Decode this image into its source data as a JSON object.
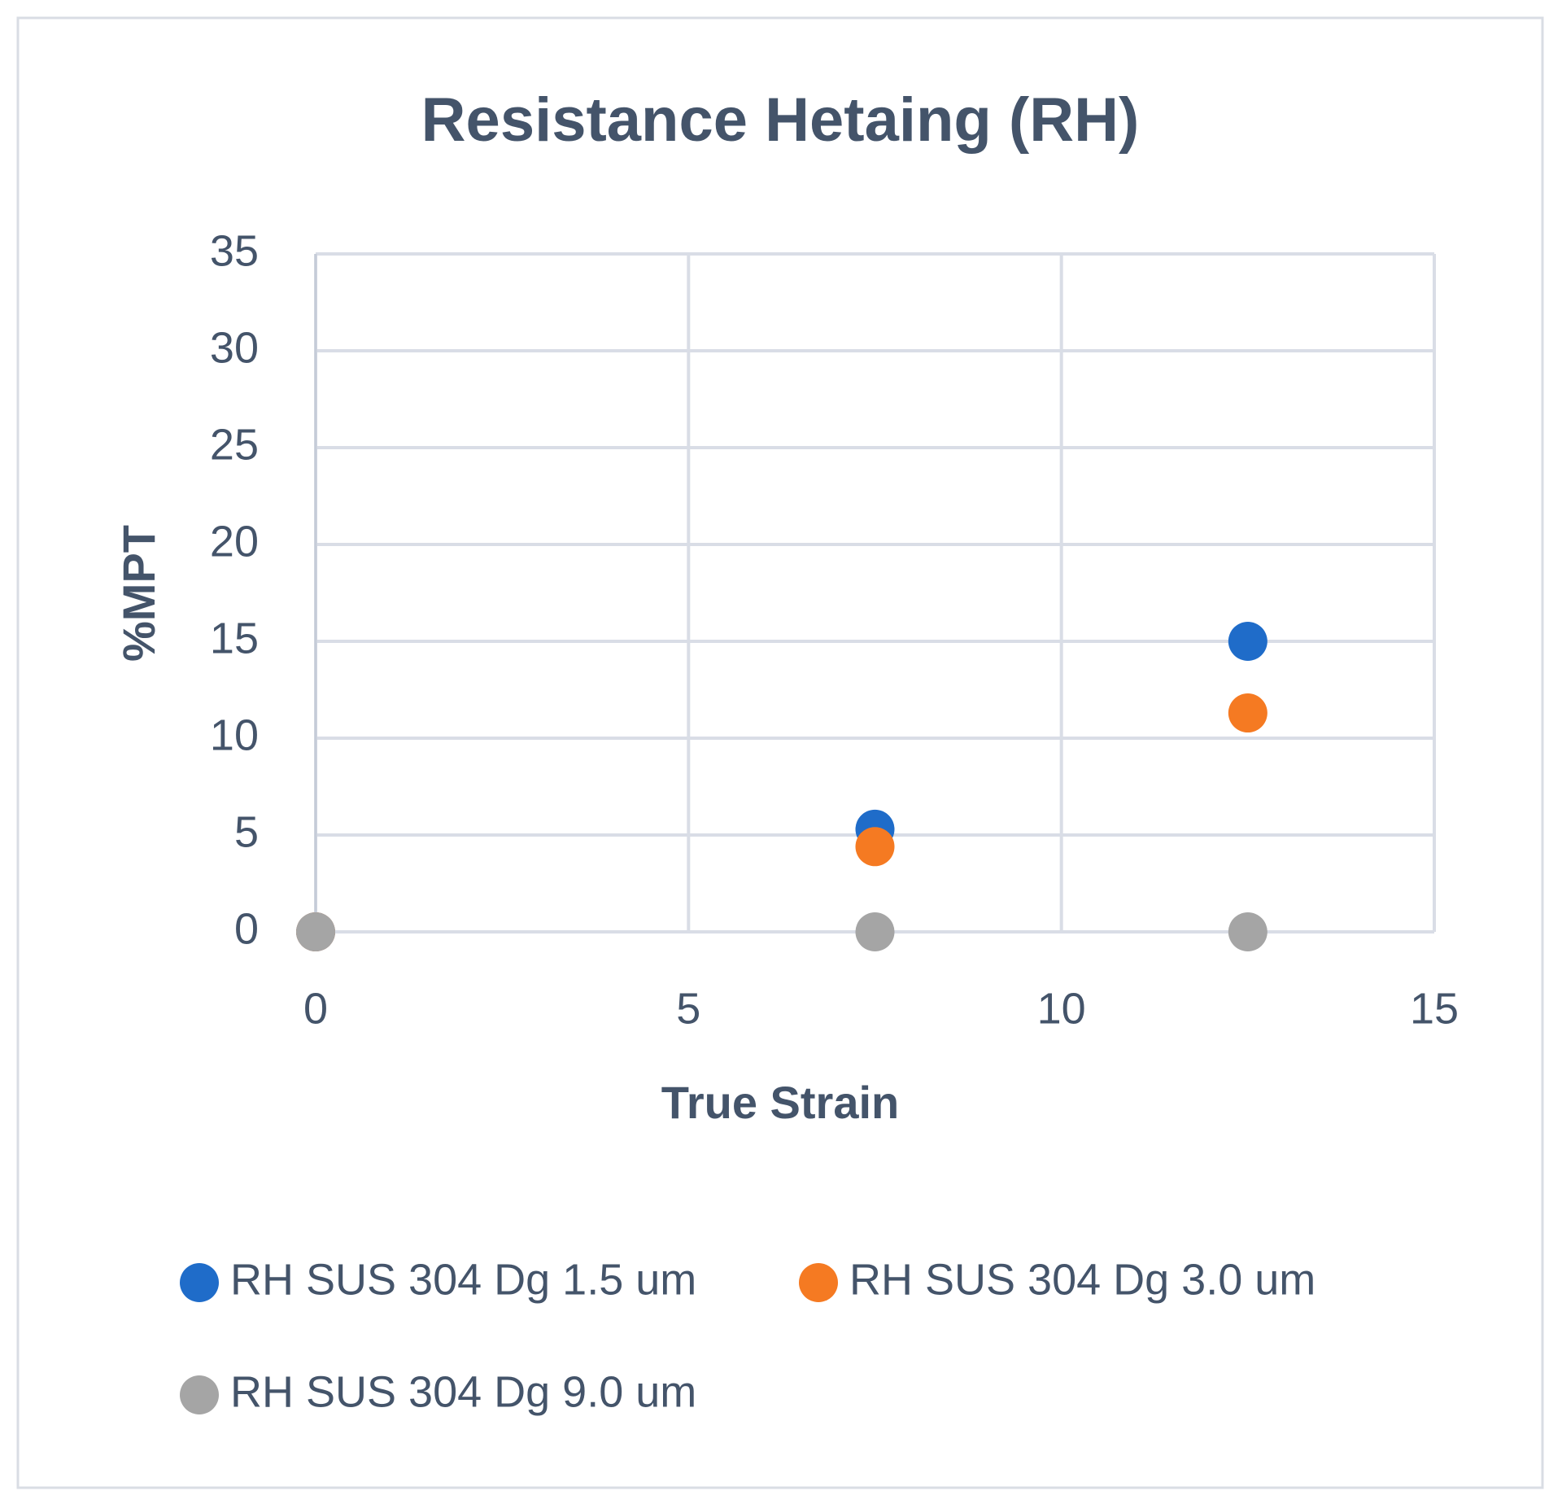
{
  "chart_data": {
    "type": "scatter",
    "title": "Resistance Hetaing (RH)",
    "x_label": "True Strain",
    "y_label": "%MPT",
    "series": [
      {
        "name": "RH SUS 304 Dg 1.5 um",
        "color": "#1f6cc9",
        "x": [
          0,
          7.5,
          12.5
        ],
        "values": [
          0,
          5.3,
          15
        ]
      },
      {
        "name": "RH SUS 304 Dg 3.0 um",
        "color": "#f57a22",
        "x": [
          0,
          7.5,
          12.5
        ],
        "values": [
          0,
          4.4,
          11.3
        ]
      },
      {
        "name": "RH SUS 304 Dg 9.0 um",
        "color": "#a5a5a5",
        "x": [
          0,
          7.5,
          12.5
        ],
        "values": [
          0,
          0,
          0
        ]
      }
    ],
    "xlim": [
      0,
      15
    ],
    "xticks": [
      0,
      5,
      10,
      15
    ],
    "ylim": [
      0,
      35
    ],
    "yticks": [
      0,
      5,
      10,
      15,
      20,
      25,
      30,
      35
    ],
    "grid": true,
    "legend": "bottom"
  }
}
